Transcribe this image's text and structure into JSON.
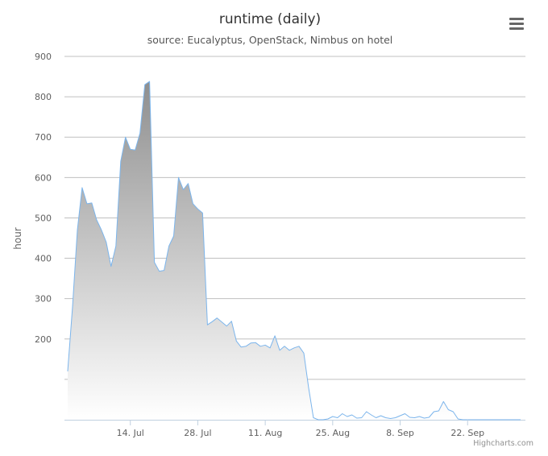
{
  "chart_data": {
    "type": "area",
    "title": "runtime (daily)",
    "subtitle": "source: Eucalyptus, OpenStack, Nimbus on hotel",
    "ylabel": "hour",
    "xlabel": "",
    "ylim": [
      0,
      900
    ],
    "y_ticks": [
      "200",
      "300",
      "400",
      "500",
      "600",
      "700",
      "800",
      "900"
    ],
    "x_range": [
      0,
      94
    ],
    "x_ticks": [
      {
        "day": 13,
        "label": "14. Jul"
      },
      {
        "day": 27,
        "label": "28. Jul"
      },
      {
        "day": 41,
        "label": "11. Aug"
      },
      {
        "day": 55,
        "label": "25. Aug"
      },
      {
        "day": 69,
        "label": "8. Sep"
      },
      {
        "day": 83,
        "label": "22. Sep"
      }
    ],
    "grid": true,
    "legend": "none",
    "colors": {
      "line": "#7cb5ec",
      "fill_top": "#8f8f8f",
      "fill_bottom": "#ffffff"
    },
    "series": [
      {
        "values": [
          120,
          280,
          470,
          575,
          535,
          537,
          495,
          470,
          440,
          380,
          430,
          640,
          700,
          670,
          668,
          710,
          830,
          838,
          390,
          368,
          370,
          430,
          455,
          600,
          570,
          585,
          535,
          522,
          512,
          235,
          243,
          252,
          242,
          232,
          244,
          195,
          180,
          182,
          190,
          191,
          182,
          185,
          178,
          208,
          172,
          182,
          172,
          178,
          182,
          165,
          80,
          5,
          0,
          0,
          2,
          8,
          5,
          15,
          8,
          12,
          4,
          5,
          20,
          12,
          5,
          10,
          5,
          3,
          5,
          10,
          15,
          6,
          5,
          8,
          4,
          6,
          20,
          22,
          45,
          25,
          20,
          2,
          0,
          0,
          0,
          0,
          0,
          0,
          0,
          0,
          0,
          0,
          0,
          0,
          0
        ]
      }
    ]
  },
  "credits": "Highcharts.com",
  "icons": {
    "menu": "hamburger-menu-icon"
  }
}
